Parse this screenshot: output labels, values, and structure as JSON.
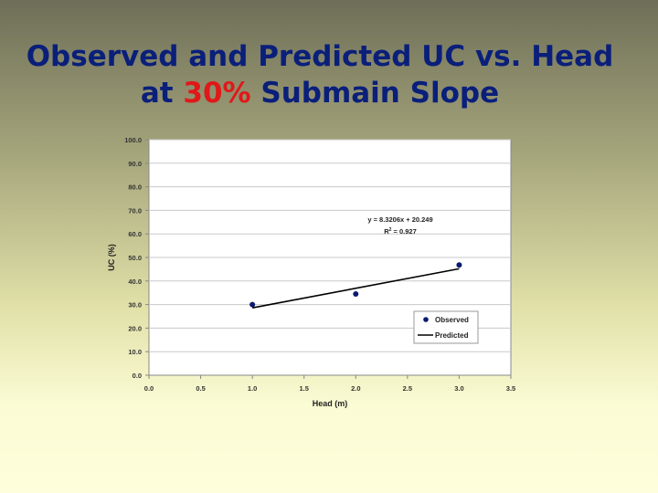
{
  "slide": {
    "title_line1": "Observed and Predicted UC vs. Head",
    "title_line2_pre": "at ",
    "title_line2_highlight": "30%",
    "title_line2_post": " Submain Slope"
  },
  "colors": {
    "title": "#0a1f7a",
    "highlight": "#e01818",
    "points": "#0a1a6e",
    "line": "#000000"
  },
  "chart_data": {
    "type": "scatter",
    "xlabel": "Head (m)",
    "ylabel": "UC (%)",
    "xlim": [
      0,
      3.5
    ],
    "ylim": [
      0,
      100
    ],
    "xticks": [
      "0.0",
      "0.5",
      "1.0",
      "1.5",
      "2.0",
      "2.5",
      "3.0",
      "3.5"
    ],
    "yticks": [
      "0.0",
      "10.0",
      "20.0",
      "30.0",
      "40.0",
      "50.0",
      "60.0",
      "70.0",
      "80.0",
      "90.0",
      "100.0"
    ],
    "grid": "horizontal",
    "series": [
      {
        "name": "Observed",
        "kind": "markers",
        "x": [
          1.0,
          2.0,
          3.0
        ],
        "y": [
          30.0,
          34.5,
          46.8
        ]
      },
      {
        "name": "Predicted",
        "kind": "line",
        "x": [
          1.0,
          3.0
        ],
        "y": [
          28.6,
          45.2
        ]
      }
    ],
    "annotation": {
      "equation": "y = 8.3206x + 20.249",
      "r2_label": "R",
      "r2_sup": "2",
      "r2_value": " = 0.927"
    },
    "legend": {
      "position": "right"
    }
  }
}
